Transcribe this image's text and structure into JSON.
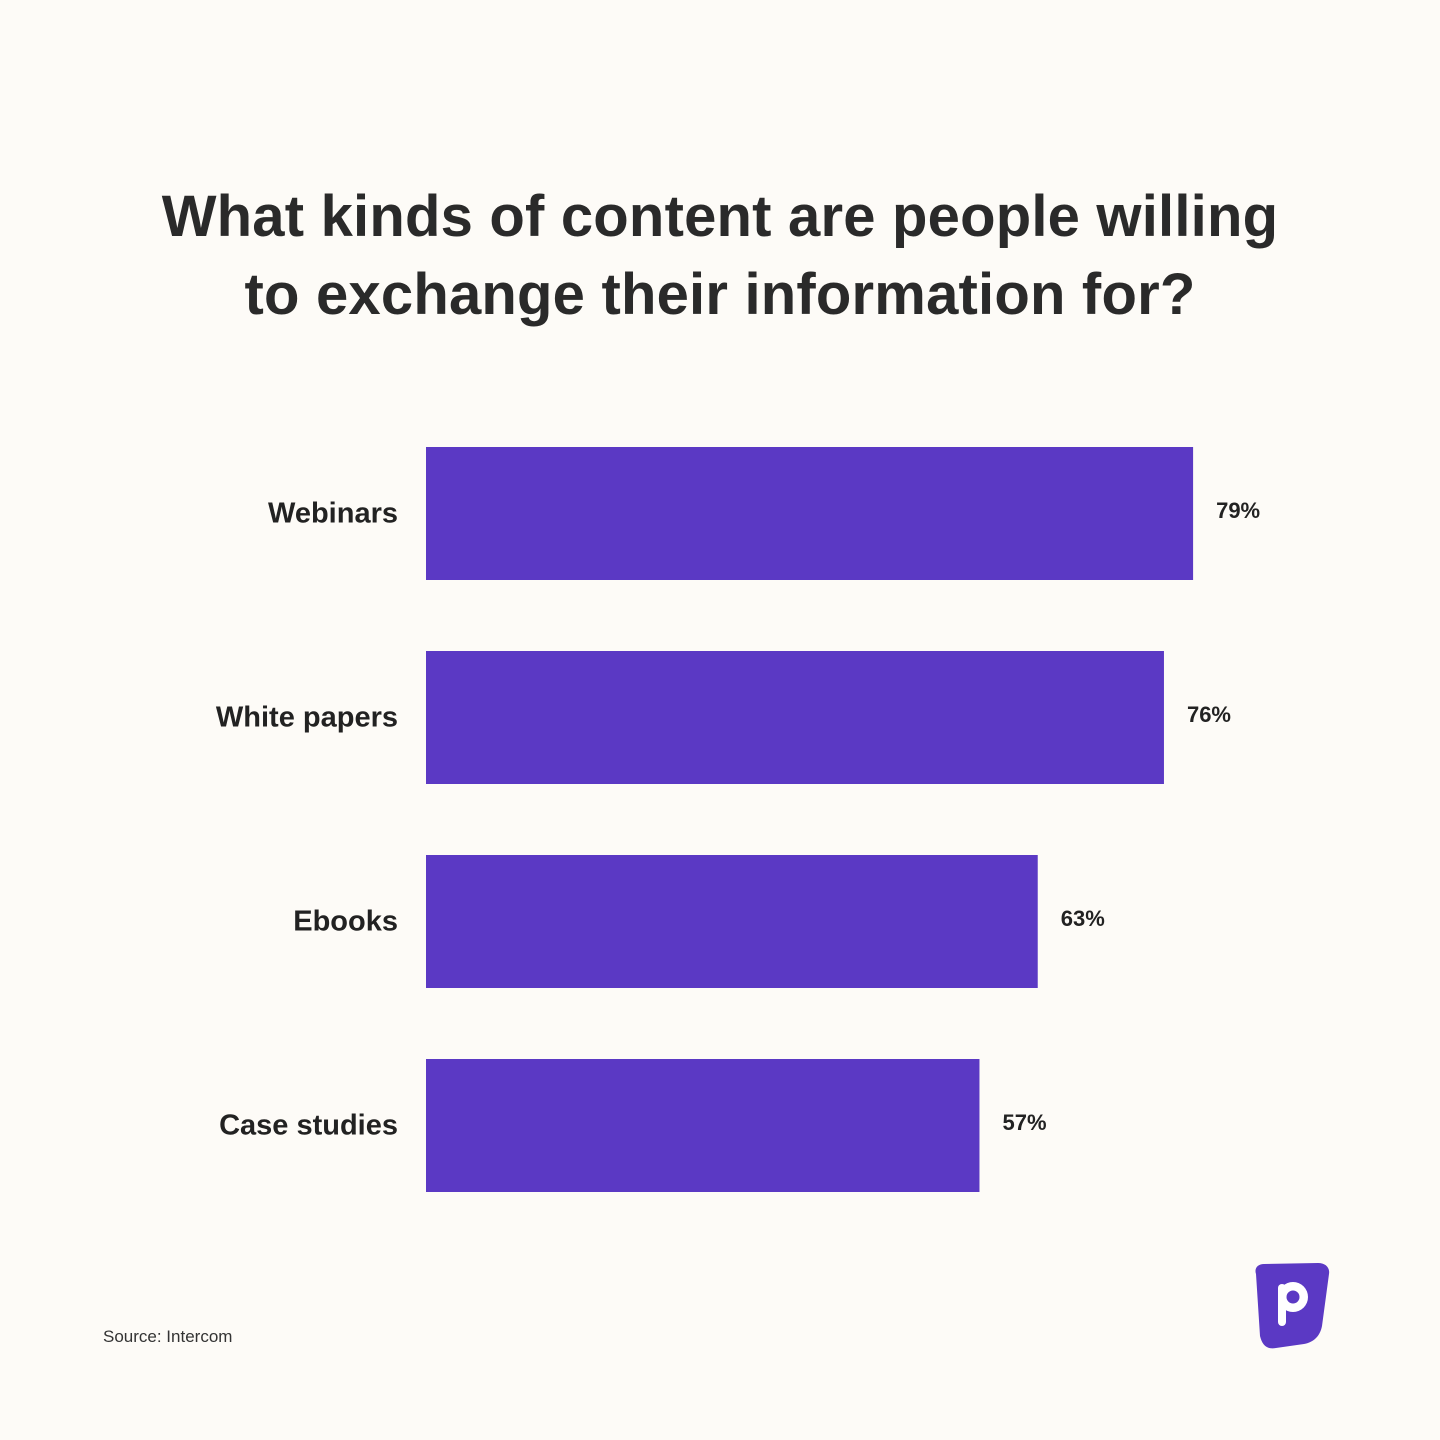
{
  "title_lines": [
    "What kinds of content are people willing",
    "to exchange their information for?"
  ],
  "source": "Source: Intercom",
  "colors": {
    "bar": "#5b39c4",
    "background": "#fdfbf7",
    "text": "#222222",
    "logo": "#5b39c4"
  },
  "logo_icon": "p-brand-logo-icon",
  "chart_data": {
    "type": "bar",
    "orientation": "horizontal",
    "categories": [
      "Webinars",
      "White papers",
      "Ebooks",
      "Case studies"
    ],
    "values": [
      79,
      76,
      63,
      57
    ],
    "value_labels": [
      "79%",
      "76%",
      "63%",
      "57%"
    ],
    "unit": "%",
    "xlim": [
      0,
      100
    ],
    "grid": false,
    "legend": "none"
  }
}
